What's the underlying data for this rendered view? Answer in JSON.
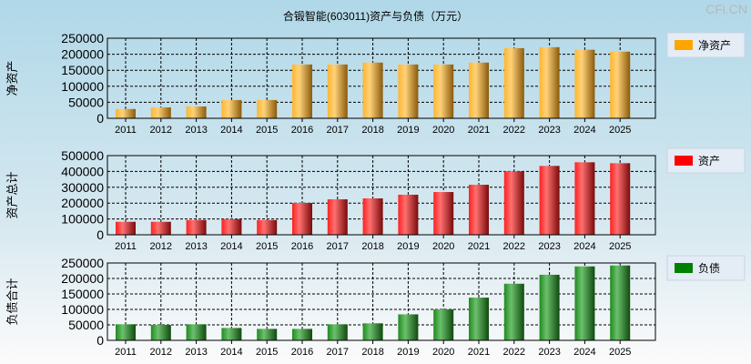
{
  "watermark": "CFi.CN",
  "chart_data": {
    "type": "bar",
    "title": "合锻智能(603011)资产与负债（万元）",
    "categories": [
      "2011",
      "2012",
      "2013",
      "2014",
      "2015",
      "2016",
      "2017",
      "2018",
      "2019",
      "2020",
      "2021",
      "2022",
      "2023",
      "2024",
      "2025"
    ],
    "panels": [
      {
        "ylabel": "净资产",
        "legend": "净资产",
        "color": "#ffa500",
        "ylim": [
          0,
          250000
        ],
        "ticks": [
          0,
          50000,
          100000,
          150000,
          200000,
          250000
        ],
        "values": [
          29000,
          34000,
          37000,
          57000,
          57000,
          168000,
          168000,
          174000,
          168000,
          168000,
          174000,
          219000,
          222000,
          214000,
          208000
        ]
      },
      {
        "ylabel": "资产总计",
        "legend": "资产",
        "color": "#ff0000",
        "ylim": [
          0,
          500000
        ],
        "ticks": [
          0,
          100000,
          200000,
          300000,
          400000,
          500000
        ],
        "values": [
          82000,
          82000,
          93000,
          99000,
          93000,
          201000,
          224000,
          230000,
          253000,
          270000,
          316000,
          401000,
          435000,
          458000,
          452000
        ]
      },
      {
        "ylabel": "负债合计",
        "legend": "负债",
        "color": "#008000",
        "ylim": [
          0,
          250000
        ],
        "ticks": [
          0,
          50000,
          100000,
          150000,
          200000,
          250000
        ],
        "values": [
          52000,
          50000,
          52000,
          40000,
          37000,
          37000,
          52000,
          55000,
          84000,
          100000,
          138000,
          183000,
          212000,
          239000,
          242000
        ]
      }
    ]
  }
}
